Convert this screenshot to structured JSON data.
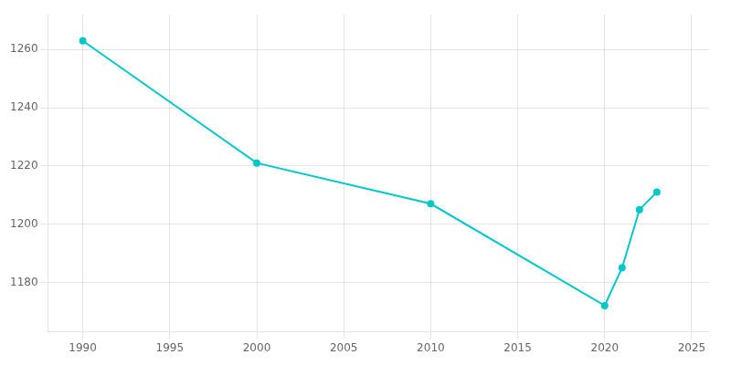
{
  "chart_data": {
    "type": "line",
    "x": [
      1990,
      2000,
      2010,
      2020,
      2021,
      2022,
      2023
    ],
    "values": [
      1263,
      1221,
      1207,
      1172,
      1185,
      1205,
      1211
    ],
    "color": "#00C8C8",
    "marker": "circle",
    "xlim": [
      1988,
      2026
    ],
    "ylim": [
      1163,
      1272
    ],
    "xticks": [
      1990,
      1995,
      2000,
      2005,
      2010,
      2015,
      2020,
      2025
    ],
    "yticks": [
      1180,
      1200,
      1220,
      1240,
      1260
    ],
    "grid": true
  }
}
